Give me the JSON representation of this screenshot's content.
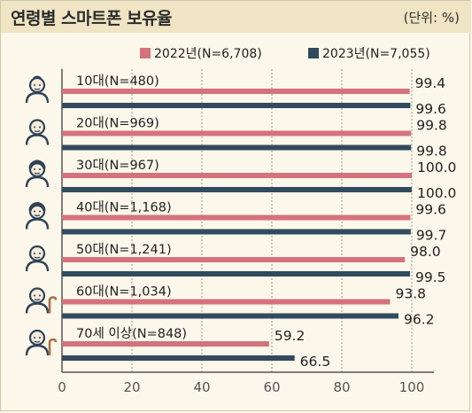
{
  "title": "연령별 스마트폰 보유율",
  "unit": "(단위: %)",
  "colors": {
    "y2022": "#d4727d",
    "y2023": "#324a5e"
  },
  "chart_data": {
    "type": "bar",
    "orientation": "horizontal",
    "categories": [
      "10대(N=480)",
      "20대(N=969)",
      "30대(N=967)",
      "40대(N=1,168)",
      "50대(N=1,241)",
      "60대(N=1,034)",
      "70세 이상(N=848)"
    ],
    "series": [
      {
        "name": "2022년(N=6,708)",
        "values": [
          99.4,
          99.8,
          100.0,
          99.6,
          98.0,
          93.8,
          59.2
        ],
        "labels": [
          "99.4",
          "99.8",
          "100.0",
          "99.6",
          "98.0",
          "93.8",
          "59.2"
        ]
      },
      {
        "name": "2023년(N=7,055)",
        "values": [
          99.6,
          99.8,
          100.0,
          99.7,
          99.5,
          96.2,
          66.5
        ],
        "labels": [
          "99.6",
          "99.8",
          "100.0",
          "99.7",
          "99.5",
          "96.2",
          "66.5"
        ]
      }
    ],
    "xlim": [
      0,
      100
    ],
    "xticks": [
      "0",
      "20",
      "40",
      "60",
      "80",
      "100"
    ],
    "legend": "top-right",
    "grid": "vertical dotted",
    "icons": [
      "teen-person-icon",
      "young-adult-icon",
      "adult-man-icon",
      "middle-aged-icon",
      "older-man-icon",
      "elderly-with-cane-icon",
      "senior-with-cane-icon"
    ]
  }
}
